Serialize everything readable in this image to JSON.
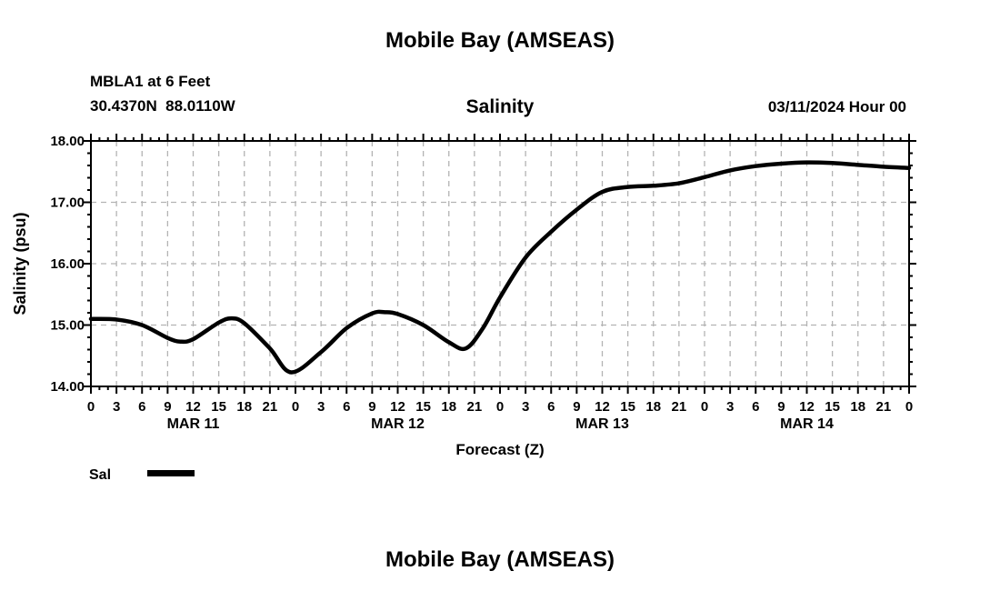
{
  "page": {
    "top_title": "Mobile Bay (AMSEAS)",
    "bottom_title": "Mobile Bay (AMSEAS)"
  },
  "header": {
    "station": "MBLA1 at 6 Feet",
    "coordinates": "30.4370N  88.0110W",
    "plot_title": "Salinity",
    "run_label": "03/11/2024 Hour 00"
  },
  "legend": {
    "label": "Sal",
    "line_color": "#000000"
  },
  "chart_data": {
    "type": "line",
    "title": "Salinity",
    "xlabel": "Forecast (Z)",
    "ylabel": "Salinity (psu)",
    "xlim": [
      0,
      96
    ],
    "ylim": [
      14,
      18
    ],
    "x_major_step": 3,
    "x_minor_step": 1,
    "y_major_step": 1,
    "y_minor_step": 0.2,
    "grid": "dashed",
    "grid_color": "#b3b3b3",
    "y_tick_values": [
      18,
      17,
      16,
      15,
      14
    ],
    "y_tick_labels": [
      "18.00",
      "17.00",
      "16.00",
      "15.00",
      "14.00"
    ],
    "x_tick_values": [
      0,
      3,
      6,
      9,
      12,
      15,
      18,
      21,
      24,
      27,
      30,
      33,
      36,
      39,
      42,
      45,
      48,
      51,
      54,
      57,
      60,
      63,
      66,
      69,
      72,
      75,
      78,
      81,
      84,
      87,
      90,
      93,
      96
    ],
    "x_tick_labels": [
      "0",
      "3",
      "6",
      "9",
      "12",
      "15",
      "18",
      "21",
      "0",
      "3",
      "6",
      "9",
      "12",
      "15",
      "18",
      "21",
      "0",
      "3",
      "6",
      "9",
      "12",
      "15",
      "18",
      "21",
      "0",
      "3",
      "6",
      "9",
      "12",
      "15",
      "18",
      "21",
      "0"
    ],
    "day_labels": [
      {
        "label": "MAR 11",
        "hour": 12
      },
      {
        "label": "MAR 12",
        "hour": 36
      },
      {
        "label": "MAR 13",
        "hour": 60
      },
      {
        "label": "MAR 14",
        "hour": 84
      }
    ],
    "series": [
      {
        "name": "Sal",
        "color": "#000000",
        "x": [
          0,
          3,
          6,
          9,
          10.5,
          12,
          15,
          16.5,
          18,
          21,
          23.5,
          27,
          30,
          33,
          34.5,
          36,
          39,
          42,
          44,
          46,
          48,
          51,
          54,
          57,
          60,
          63,
          66,
          69,
          72,
          75,
          78,
          81,
          84,
          87,
          90,
          93,
          96
        ],
        "values": [
          15.1,
          15.09,
          15.0,
          14.79,
          14.73,
          14.77,
          15.04,
          15.11,
          15.03,
          14.62,
          14.23,
          14.56,
          14.95,
          15.19,
          15.21,
          15.18,
          15.0,
          14.72,
          14.62,
          14.95,
          15.45,
          16.1,
          16.52,
          16.88,
          17.17,
          17.25,
          17.27,
          17.31,
          17.41,
          17.52,
          17.59,
          17.63,
          17.65,
          17.64,
          17.61,
          17.58,
          17.56
        ]
      }
    ]
  }
}
